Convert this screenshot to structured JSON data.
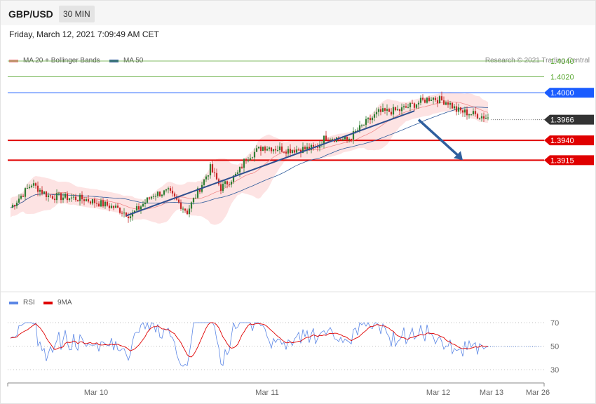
{
  "header": {
    "symbol": "GBP/USD",
    "timeframe": "30 MIN",
    "datetime": "Friday, March 12, 2021 7:09:49 AM CET"
  },
  "legend_main": [
    {
      "label": "MA 20 + Bollinger Bands",
      "color": "#f08a8a"
    },
    {
      "label": "MA 50",
      "color": "#2f5b9c"
    }
  ],
  "legend_rsi": [
    {
      "label": "RSI",
      "color": "#5b86e5"
    },
    {
      "label": "9MA",
      "color": "#e00000"
    }
  ],
  "credit": "Research © 2021 Trading Central",
  "colors": {
    "up": "#2e7d32",
    "down": "#c62828",
    "band": "#fde3e3",
    "ma20": "#f08a8a",
    "ma50": "#2f5b9c",
    "trend": "#2f4f8f",
    "resistance_green": "#5aa832",
    "resistance_blue": "#1a5cff",
    "support_red": "#e00000",
    "current": "#333333",
    "arrow": "#2f5f9e"
  },
  "chart_data": [
    {
      "type": "candlestick",
      "title": "GBP/USD",
      "timeframe": "30 MIN",
      "x_ticks": [
        "Mar 10",
        "Mar 11",
        "Mar 12",
        "Mar 13",
        "Mar 26"
      ],
      "ylim": [
        1.3765,
        1.4055
      ],
      "price_levels": [
        {
          "label": "1.4040",
          "value": 1.404,
          "style": "green"
        },
        {
          "label": "1.4020",
          "value": 1.402,
          "style": "green"
        },
        {
          "label": "1.4000",
          "value": 1.4,
          "style": "blue"
        },
        {
          "label": "1.3966",
          "value": 1.3966,
          "style": "current"
        },
        {
          "label": "1.3940",
          "value": 1.394,
          "style": "red"
        },
        {
          "label": "1.3915",
          "value": 1.3915,
          "style": "red"
        }
      ],
      "trendline": {
        "from": {
          "bar": 55,
          "price": 1.3845
        },
        "to": {
          "bar": 192,
          "price": 1.3977
        }
      },
      "forecast_arrow": {
        "from": {
          "bar": 194,
          "price": 1.3966
        },
        "to": {
          "bar": 215,
          "price": 1.3915
        }
      },
      "indicators": [
        "MA 20 + Bollinger Bands",
        "MA 50"
      ]
    },
    {
      "type": "line",
      "series": [
        {
          "name": "RSI"
        },
        {
          "name": "9MA"
        }
      ],
      "y_ticks": [
        30,
        50,
        70
      ],
      "ylim": [
        20,
        80
      ]
    }
  ]
}
